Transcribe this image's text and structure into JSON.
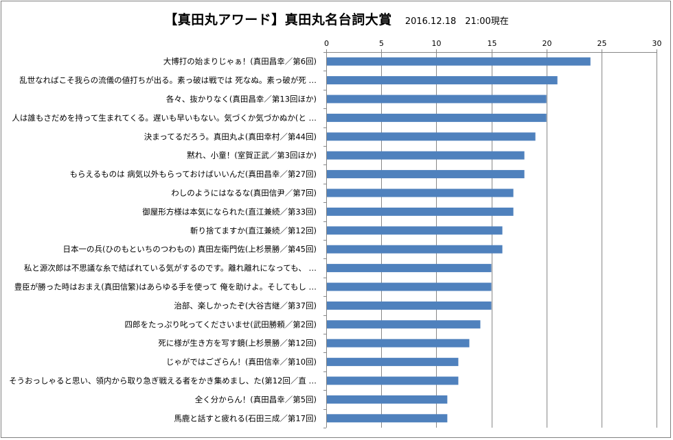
{
  "chart_data": {
    "type": "bar",
    "orientation": "horizontal",
    "title": "【真田丸アワード】真田丸名台詞大賞",
    "subtitle": "2016.12.18　21:00現在",
    "xlim": [
      0,
      30
    ],
    "xticks": [
      0,
      5,
      10,
      15,
      20,
      25,
      30
    ],
    "grid": true,
    "bar_color": "#4f81bd",
    "categories": [
      "大博打の始まりじゃぁ！(真田昌幸／第6回)",
      "乱世なればこそ我らの流儀の値打ちが出る。素っ破は戦では 死なぬ。素っ破が死 …",
      "各々、抜かりなく(真田昌幸／第13回ほか)",
      "人は誰もさだめを持って生まれてくる。遅いも早いもない。気づくか気づかぬか(と …",
      "決まってるだろう。真田丸よ(真田幸村／第44回)",
      "黙れ、小童！(室賀正武／第3回ほか)",
      "もらえるものは 病気以外もらっておけばいいんだ(真田昌幸／第27回)",
      "わしのようにはなるな(真田信尹／第7回)",
      "御屋形方様は本気になられた(直江兼続／第33回)",
      "斬り捨てますか(直江兼続／第12回)",
      "日本一の兵(ひのもといちのつわもの) 真田左衛門佐(上杉景勝／第45回)",
      "私と源次郎は不思議な糸で結ばれている気がするのです。離れ離れになっても、 …",
      "豊臣が勝った時はおまえ(真田信繁)はあらゆる手を使って 俺を助けよ。そしてもし …",
      "治部、楽しかったぞ(大谷吉継／第37回)",
      "四郎をたっぷり叱ってくださいませ(武田勝頼／第2回)",
      "死に様が生き方を写す鏡(上杉景勝／第12回)",
      "じゃがではござらん！(真田信幸／第10回)",
      "そうおっしゃると思い、領内から取り急ぎ戦える者をかき集めまし、た(第12回／直 …",
      "全く分からん！(真田昌幸／第5回)",
      "馬鹿と話すと疲れる(石田三成／第17回)"
    ],
    "values": [
      24,
      21,
      20,
      20,
      19,
      18,
      18,
      17,
      17,
      16,
      16,
      15,
      15,
      15,
      14,
      13,
      12,
      12,
      11,
      11
    ]
  }
}
